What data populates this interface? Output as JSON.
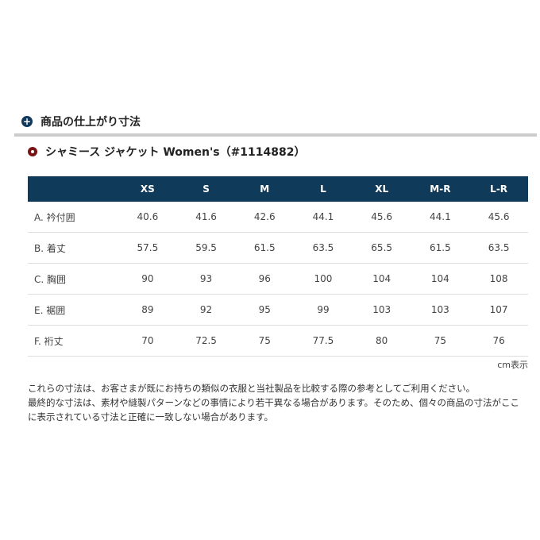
{
  "section_title": "商品の仕上がり寸法",
  "product_title": "シャミース ジャケット Women's（#1114882）",
  "table": {
    "headers": [
      "",
      "XS",
      "S",
      "M",
      "L",
      "XL",
      "M-R",
      "L-R"
    ],
    "rows": [
      {
        "label": "A. 衿付囲",
        "values": [
          "40.6",
          "41.6",
          "42.6",
          "44.1",
          "45.6",
          "44.1",
          "45.6"
        ]
      },
      {
        "label": "B. 着丈",
        "values": [
          "57.5",
          "59.5",
          "61.5",
          "63.5",
          "65.5",
          "61.5",
          "63.5"
        ]
      },
      {
        "label": "C. 胸囲",
        "values": [
          "90",
          "93",
          "96",
          "100",
          "104",
          "104",
          "108"
        ]
      },
      {
        "label": "E. 裾囲",
        "values": [
          "89",
          "92",
          "95",
          "99",
          "103",
          "103",
          "107"
        ]
      },
      {
        "label": "F. 裄丈",
        "values": [
          "70",
          "72.5",
          "75",
          "77.5",
          "80",
          "75",
          "76"
        ]
      }
    ]
  },
  "unit_note": "cm表示",
  "notes": [
    "これらの寸法は、お客さまが既にお持ちの類似の衣服と当社製品を比較する際の参考としてご利用ください。",
    "最終的な寸法は、素材や縫製パターンなどの事情により若干異なる場合があります。そのため、個々の商品の寸法がここに表示されている寸法と正確に一致しない場合があります。"
  ],
  "colors": {
    "header_bg": "#0f3a5a",
    "section_icon": "#123a5c",
    "product_icon": "#7a1414"
  }
}
